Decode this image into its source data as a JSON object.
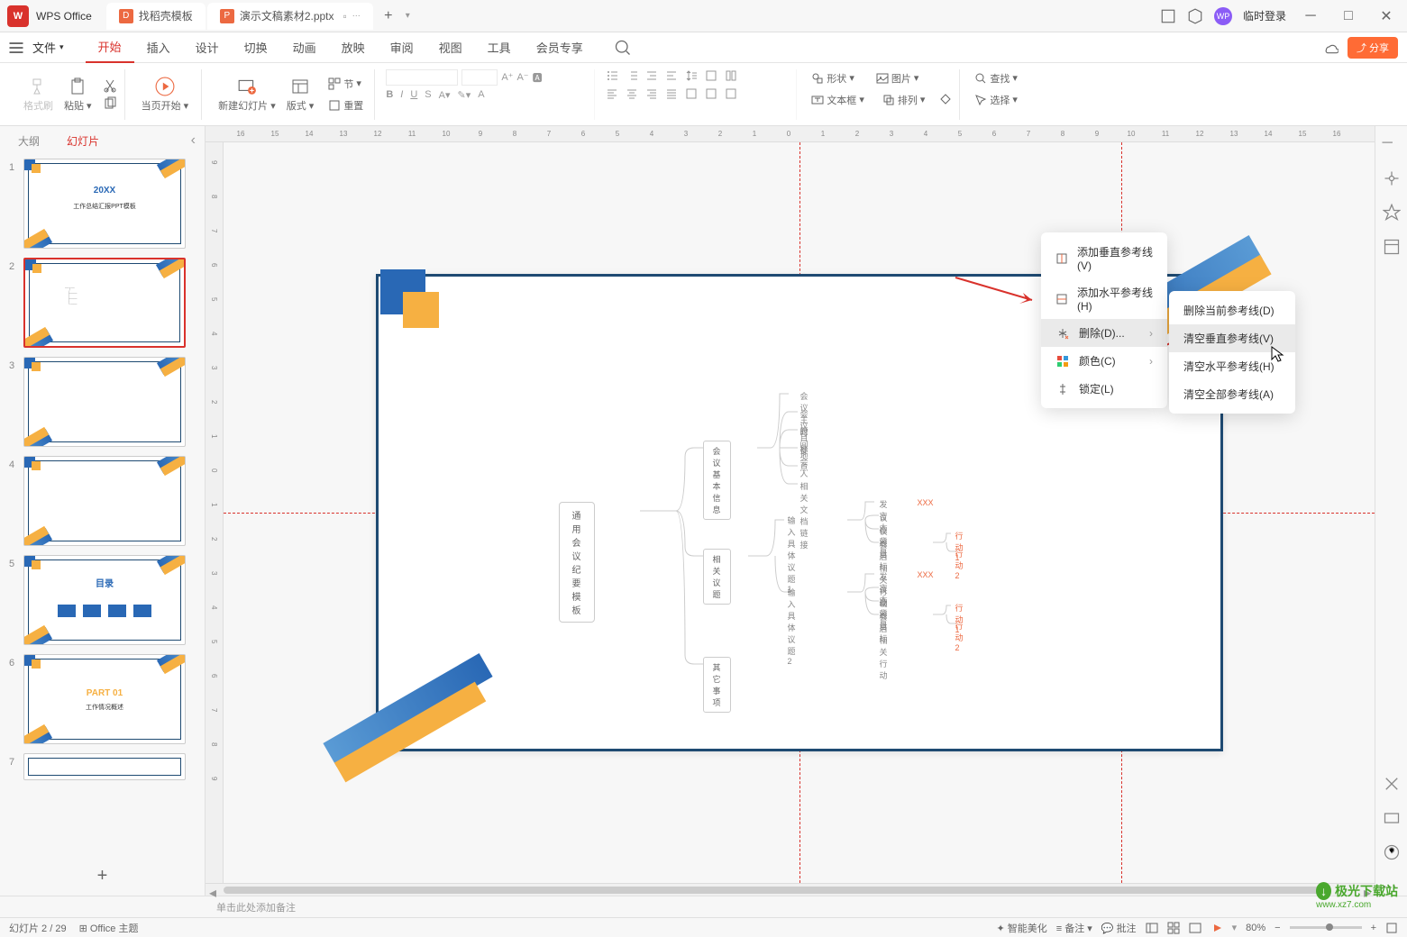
{
  "app": {
    "name": "WPS Office"
  },
  "tabs": {
    "template": "找稻壳模板",
    "active": "演示文稿素材2.pptx"
  },
  "titlebar": {
    "login": "临时登录"
  },
  "menu": {
    "file": "文件",
    "items": [
      "开始",
      "插入",
      "设计",
      "切换",
      "动画",
      "放映",
      "审阅",
      "视图",
      "工具",
      "会员专享"
    ],
    "share": "分享"
  },
  "toolbar": {
    "format_painter": "格式刷",
    "paste": "粘贴",
    "slideshow": "当页开始",
    "new_slide": "新建幻灯片",
    "layout": "版式",
    "section": "节",
    "reset": "重置",
    "shape": "形状",
    "textbox": "文本框",
    "image": "图片",
    "arrange": "排列",
    "find": "查找",
    "select": "选择"
  },
  "sidebar": {
    "tab_outline": "大纲",
    "tab_slides": "幻灯片",
    "thumbs": [
      {
        "n": "1",
        "title": "20XX",
        "sub": "工作总结汇报PPT模板"
      },
      {
        "n": "2"
      },
      {
        "n": "3"
      },
      {
        "n": "4"
      },
      {
        "n": "5",
        "title": "目录"
      },
      {
        "n": "6",
        "title": "PART 01",
        "sub": "工作情况概述"
      },
      {
        "n": "7"
      }
    ]
  },
  "ruler": {
    "h": [
      "16",
      "15",
      "14",
      "13",
      "12",
      "11",
      "10",
      "9",
      "8",
      "7",
      "6",
      "5",
      "4",
      "3",
      "2",
      "1",
      "0",
      "1",
      "2",
      "3",
      "4",
      "5",
      "6",
      "7",
      "8",
      "9",
      "10",
      "11",
      "12",
      "13",
      "14",
      "15",
      "16"
    ],
    "v": [
      "9",
      "8",
      "7",
      "6",
      "5",
      "4",
      "3",
      "2",
      "1",
      "0",
      "1",
      "2",
      "3",
      "4",
      "5",
      "6",
      "7",
      "8",
      "9"
    ]
  },
  "slide": {
    "mindmap": {
      "root": "通用会议纪要模板",
      "n1": "会议基本信息",
      "n1_leaves": [
        "会议主题",
        "会议目标",
        "时间地点",
        "参会人",
        "相关文档链接"
      ],
      "n2": "相关议题",
      "n2_sub1": "输入具体议题1",
      "n2_sub2": "输入具体议题2",
      "leaves2": [
        "发言人",
        "议题背景",
        "议题目标",
        "会后相关行动"
      ],
      "xxx": "XXX",
      "action1": "行动 1",
      "action2": "行动 2",
      "n3": "其它事项"
    }
  },
  "ctx1": {
    "add_v": "添加垂直参考线(V)",
    "add_h": "添加水平参考线(H)",
    "delete": "删除(D)...",
    "color": "颜色(C)",
    "lock": "锁定(L)"
  },
  "ctx2": {
    "del_current": "删除当前参考线(D)",
    "clear_v": "清空垂直参考线(V)",
    "clear_h": "清空水平参考线(H)",
    "clear_all": "清空全部参考线(A)"
  },
  "notes": "单击此处添加备注",
  "status": {
    "slide": "幻灯片 2 / 29",
    "theme": "Office 主题",
    "beautify": "智能美化",
    "notes": "备注",
    "comments": "批注",
    "zoom": "80%"
  },
  "watermark": {
    "site": "极光下载站",
    "url": "www.xz7.com"
  },
  "colors": {
    "accent": "#d9322c",
    "blue": "#2968b5",
    "orange": "#f6b042",
    "frame": "#1e4a72"
  }
}
